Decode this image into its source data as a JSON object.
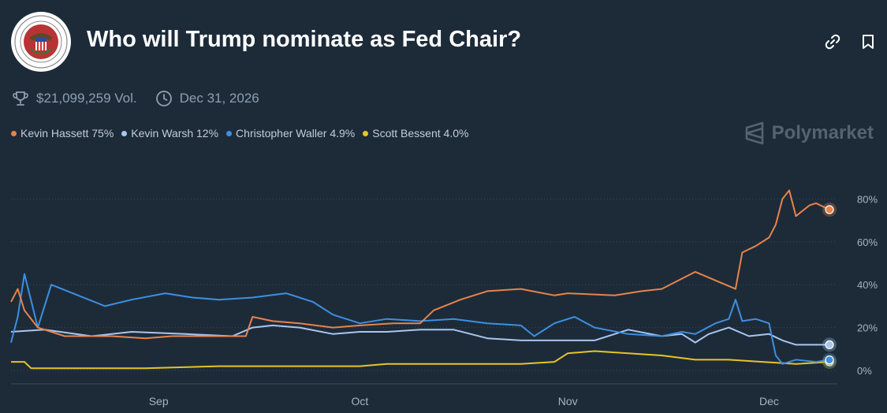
{
  "header": {
    "title": "Who will Trump nominate as Fed Chair?",
    "logo_icon": "federal-reserve-seal",
    "link_icon": "link-icon",
    "bookmark_icon": "bookmark-icon"
  },
  "meta": {
    "volume": "$21,099,259 Vol.",
    "end_date": "Dec 31, 2026",
    "trophy_icon": "trophy-icon",
    "clock_icon": "clock-icon"
  },
  "legend": [
    {
      "label": "Kevin Hassett 75%",
      "color": "#e8834a"
    },
    {
      "label": "Kevin Warsh 12%",
      "color": "#a9c6ee"
    },
    {
      "label": "Christopher Waller 4.9%",
      "color": "#3d8fe0"
    },
    {
      "label": "Scott Bessent 4.0%",
      "color": "#e8c325"
    }
  ],
  "brand": {
    "name": "Polymarket"
  },
  "chart_data": {
    "type": "line",
    "x_labels": [
      "Sep",
      "Oct",
      "Nov",
      "Dec"
    ],
    "x_label_dates": [
      "Sep 1",
      "Oct 1",
      "Nov 1",
      "Dec 1"
    ],
    "y_ticks": [
      "0%",
      "20%",
      "40%",
      "60%",
      "80%"
    ],
    "ylim": [
      0,
      86
    ],
    "y_tick_values": [
      0,
      20,
      40,
      60,
      80
    ],
    "date_range": [
      "Aug 10",
      "Dec 10"
    ],
    "series": [
      {
        "name": "Kevin Hassett",
        "color": "#e8834a",
        "end_value": 75,
        "points": [
          [
            "Aug 10",
            32
          ],
          [
            "Aug 11",
            38
          ],
          [
            "Aug 12",
            28
          ],
          [
            "Aug 14",
            20
          ],
          [
            "Aug 18",
            16
          ],
          [
            "Aug 25",
            16
          ],
          [
            "Aug 30",
            15
          ],
          [
            "Sep 3",
            16
          ],
          [
            "Sep 10",
            16
          ],
          [
            "Sep 14",
            16
          ],
          [
            "Sep 15",
            25
          ],
          [
            "Sep 18",
            23
          ],
          [
            "Sep 22",
            22
          ],
          [
            "Sep 27",
            20
          ],
          [
            "Oct 1",
            21
          ],
          [
            "Oct 6",
            22
          ],
          [
            "Oct 10",
            22
          ],
          [
            "Oct 12",
            28
          ],
          [
            "Oct 16",
            33
          ],
          [
            "Oct 20",
            37
          ],
          [
            "Oct 25",
            38
          ],
          [
            "Oct 30",
            35
          ],
          [
            "Nov 1",
            36
          ],
          [
            "Nov 8",
            35
          ],
          [
            "Nov 12",
            37
          ],
          [
            "Nov 15",
            38
          ],
          [
            "Nov 20",
            46
          ],
          [
            "Nov 23",
            42
          ],
          [
            "Nov 26",
            38
          ],
          [
            "Nov 27",
            55
          ],
          [
            "Nov 29",
            58
          ],
          [
            "Dec 1",
            62
          ],
          [
            "Dec 2",
            68
          ],
          [
            "Dec 3",
            80
          ],
          [
            "Dec 4",
            84
          ],
          [
            "Dec 5",
            72
          ],
          [
            "Dec 7",
            77
          ],
          [
            "Dec 8",
            78
          ],
          [
            "Dec 10",
            75
          ]
        ]
      },
      {
        "name": "Kevin Warsh",
        "color": "#a9c6ee",
        "end_value": 12,
        "points": [
          [
            "Aug 10",
            18
          ],
          [
            "Aug 15",
            19
          ],
          [
            "Aug 22",
            16
          ],
          [
            "Aug 28",
            18
          ],
          [
            "Sep 5",
            17
          ],
          [
            "Sep 12",
            16
          ],
          [
            "Sep 15",
            20
          ],
          [
            "Sep 18",
            21
          ],
          [
            "Sep 22",
            20
          ],
          [
            "Sep 27",
            17
          ],
          [
            "Oct 1",
            18
          ],
          [
            "Oct 5",
            18
          ],
          [
            "Oct 10",
            19
          ],
          [
            "Oct 15",
            19
          ],
          [
            "Oct 20",
            15
          ],
          [
            "Oct 25",
            14
          ],
          [
            "Oct 30",
            14
          ],
          [
            "Nov 5",
            14
          ],
          [
            "Nov 10",
            19
          ],
          [
            "Nov 15",
            16
          ],
          [
            "Nov 18",
            17
          ],
          [
            "Nov 20",
            13
          ],
          [
            "Nov 22",
            17
          ],
          [
            "Nov 25",
            20
          ],
          [
            "Nov 28",
            16
          ],
          [
            "Dec 1",
            17
          ],
          [
            "Dec 3",
            14
          ],
          [
            "Dec 5",
            12
          ],
          [
            "Dec 8",
            12
          ],
          [
            "Dec 10",
            12
          ]
        ]
      },
      {
        "name": "Christopher Waller",
        "color": "#3d8fe0",
        "end_value": 4.9,
        "points": [
          [
            "Aug 10",
            13
          ],
          [
            "Aug 11",
            25
          ],
          [
            "Aug 12",
            45
          ],
          [
            "Aug 14",
            20
          ],
          [
            "Aug 16",
            40
          ],
          [
            "Aug 20",
            35
          ],
          [
            "Aug 24",
            30
          ],
          [
            "Aug 28",
            33
          ],
          [
            "Sep 2",
            36
          ],
          [
            "Sep 6",
            34
          ],
          [
            "Sep 10",
            33
          ],
          [
            "Sep 15",
            34
          ],
          [
            "Sep 20",
            36
          ],
          [
            "Sep 24",
            32
          ],
          [
            "Sep 27",
            26
          ],
          [
            "Oct 1",
            22
          ],
          [
            "Oct 5",
            24
          ],
          [
            "Oct 10",
            23
          ],
          [
            "Oct 15",
            24
          ],
          [
            "Oct 20",
            22
          ],
          [
            "Oct 25",
            21
          ],
          [
            "Oct 27",
            16
          ],
          [
            "Oct 30",
            22
          ],
          [
            "Nov 2",
            25
          ],
          [
            "Nov 5",
            20
          ],
          [
            "Nov 10",
            17
          ],
          [
            "Nov 15",
            16
          ],
          [
            "Nov 18",
            18
          ],
          [
            "Nov 20",
            17
          ],
          [
            "Nov 23",
            22
          ],
          [
            "Nov 25",
            24
          ],
          [
            "Nov 26",
            33
          ],
          [
            "Nov 27",
            23
          ],
          [
            "Nov 29",
            24
          ],
          [
            "Dec 1",
            22
          ],
          [
            "Dec 2",
            7
          ],
          [
            "Dec 3",
            3
          ],
          [
            "Dec 5",
            5
          ],
          [
            "Dec 8",
            4
          ],
          [
            "Dec 10",
            5
          ]
        ]
      },
      {
        "name": "Scott Bessent",
        "color": "#e8c325",
        "end_value": 4,
        "points": [
          [
            "Aug 10",
            4
          ],
          [
            "Aug 12",
            4
          ],
          [
            "Aug 13",
            1
          ],
          [
            "Aug 20",
            1
          ],
          [
            "Aug 30",
            1
          ],
          [
            "Sep 10",
            2
          ],
          [
            "Sep 20",
            2
          ],
          [
            "Oct 1",
            2
          ],
          [
            "Oct 5",
            3
          ],
          [
            "Oct 15",
            3
          ],
          [
            "Oct 25",
            3
          ],
          [
            "Oct 30",
            4
          ],
          [
            "Nov 1",
            8
          ],
          [
            "Nov 5",
            9
          ],
          [
            "Nov 10",
            8
          ],
          [
            "Nov 15",
            7
          ],
          [
            "Nov 20",
            5
          ],
          [
            "Nov 25",
            5
          ],
          [
            "Nov 30",
            4
          ],
          [
            "Dec 5",
            3
          ],
          [
            "Dec 10",
            4
          ]
        ]
      }
    ]
  }
}
